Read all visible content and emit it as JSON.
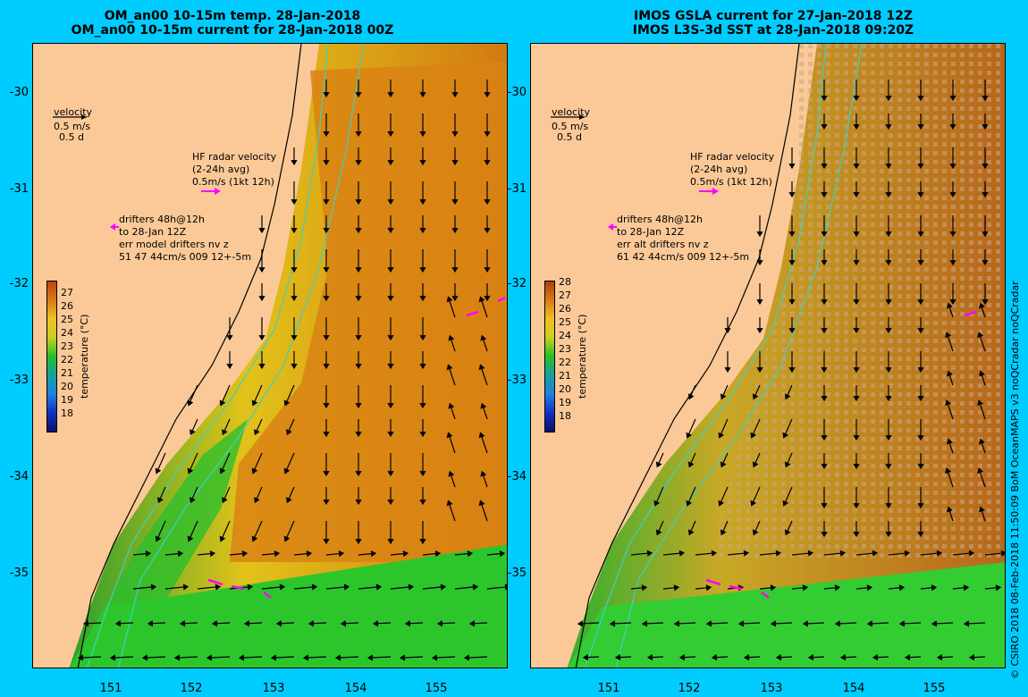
{
  "left_panel": {
    "title_line1": "OM_an00 10-15m temp. 28-Jan-2018",
    "title_line2": "OM_an00 10-15m current for 28-Jan-2018 00Z",
    "velocity_label": "velocity",
    "velocity_scale1": "0.5 m/s",
    "velocity_scale2": "0.5 d",
    "hf_line1": "HF radar velocity",
    "hf_line2": "(2-24h avg)",
    "hf_line3": "0.5m/s (1kt 12h)",
    "drift_line1": "drifters 48h@12h",
    "drift_line2": "to 28-Jan 12Z",
    "drift_line3": "err model drifters nv z",
    "drift_line4": "51 47 44cm/s 009 12+-5m",
    "colorbar_title": "temperature (°C)",
    "colorbar_ticks": [
      "27",
      "26",
      "25",
      "24",
      "23",
      "22",
      "21",
      "20",
      "19",
      "18"
    ]
  },
  "right_panel": {
    "title_line1": "IMOS GSLA current for 27-Jan-2018 12Z",
    "title_line2": "IMOS L3S-3d SST at 28-Jan-2018 09:20Z",
    "velocity_label": "velocity",
    "velocity_scale1": "0.5 m/s",
    "velocity_scale2": "0.5 d",
    "hf_line1": "HF radar velocity",
    "hf_line2": "(2-24h avg)",
    "hf_line3": "0.5m/s (1kt 12h)",
    "drift_line1": "drifters 48h@12h",
    "drift_line2": "to 28-Jan 12Z",
    "drift_line3": "err alt drifters nv z",
    "drift_line4": "61 42 44cm/s 009 12+-5m",
    "colorbar_title": "temperature (°C)",
    "colorbar_ticks": [
      "28",
      "27",
      "26",
      "25",
      "24",
      "23",
      "22",
      "21",
      "20",
      "19",
      "18"
    ]
  },
  "y_axis_labels": [
    "-30",
    "-31",
    "-32",
    "-33",
    "-34",
    "-35"
  ],
  "x_axis_labels": [
    "151",
    "152",
    "153",
    "154",
    "155"
  ],
  "credit": "© CSIRO 2018   08-Feb-2018 11:50:09 BoM OceanMAPS v3 noQCradar noQCradar",
  "colors": {
    "background": "#00ccff",
    "land": "#fbc997",
    "warm": "#d97a10",
    "green": "#22c32a",
    "contour": "#40d0c0",
    "drifter": "#ff00ff"
  }
}
